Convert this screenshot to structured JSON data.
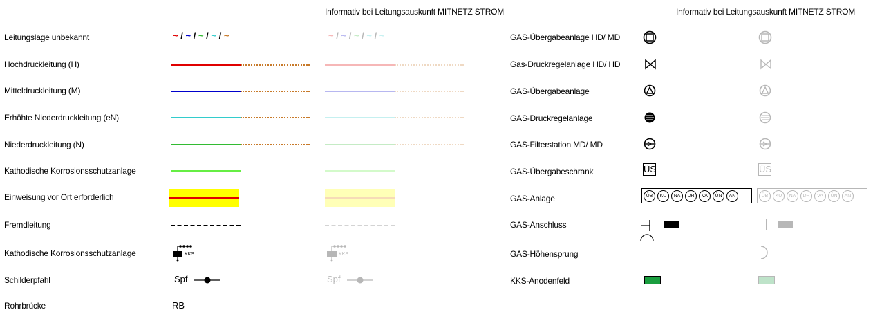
{
  "header": {
    "informative_left": "Informativ bei Leitungsauskunft MITNETZ STROM",
    "informative_right": "Informativ bei Leitungsauskunft MITNETZ STROM"
  },
  "left_rows": [
    {
      "label": "Leitungslage unbekannt"
    },
    {
      "label": "Hochdruckleitung (H)"
    },
    {
      "label": "Mitteldruckleitung (M)"
    },
    {
      "label": "Erhöhte Niederdruckleitung (eN)"
    },
    {
      "label": "Niederdruckleitung (N)"
    },
    {
      "label": "Kathodische Korrosionsschutzanlage"
    },
    {
      "label": "Einweisung vor Ort erforderlich"
    },
    {
      "label": "Fremdleitung"
    },
    {
      "label": "Kathodische Korrosionsschutzanlage"
    },
    {
      "label": "Schilderpfahl"
    },
    {
      "label": "Rohrbrücke"
    }
  ],
  "right_rows": [
    {
      "label": "GAS-Übergabeanlage HD/ MD"
    },
    {
      "label": "Gas-Druckregelanlage HD/ HD"
    },
    {
      "label": "GAS-Übergabeanlage"
    },
    {
      "label": "GAS-Druckregelanlage"
    },
    {
      "label": "GAS-Filterstation MD/ MD"
    },
    {
      "label": "GAS-Übergabeschrank"
    },
    {
      "label": "GAS-Anlage"
    },
    {
      "label": "GAS-Anschluss"
    },
    {
      "label": "GAS-Höhensprung"
    },
    {
      "label": "KKS-Anodenfeld"
    }
  ],
  "symbols": {
    "unknown_sep": "/",
    "unknown_tilde": "~",
    "kks_text": "KKS",
    "spf_text": "Spf",
    "rb_text": "RB",
    "ues_text": "ÜS",
    "anlage_codes": [
      "ÜB",
      "KU",
      "NA",
      "DR",
      "VA",
      "ÜN",
      "AN"
    ]
  },
  "colors": {
    "red": "#e00000",
    "blue": "#0000cc",
    "cyan": "#33cccc",
    "green": "#33bb33",
    "light_green": "#66ee44",
    "brown": "#c87a2a",
    "yellow": "#ffff00",
    "anode_green": "#1a9e3f"
  }
}
